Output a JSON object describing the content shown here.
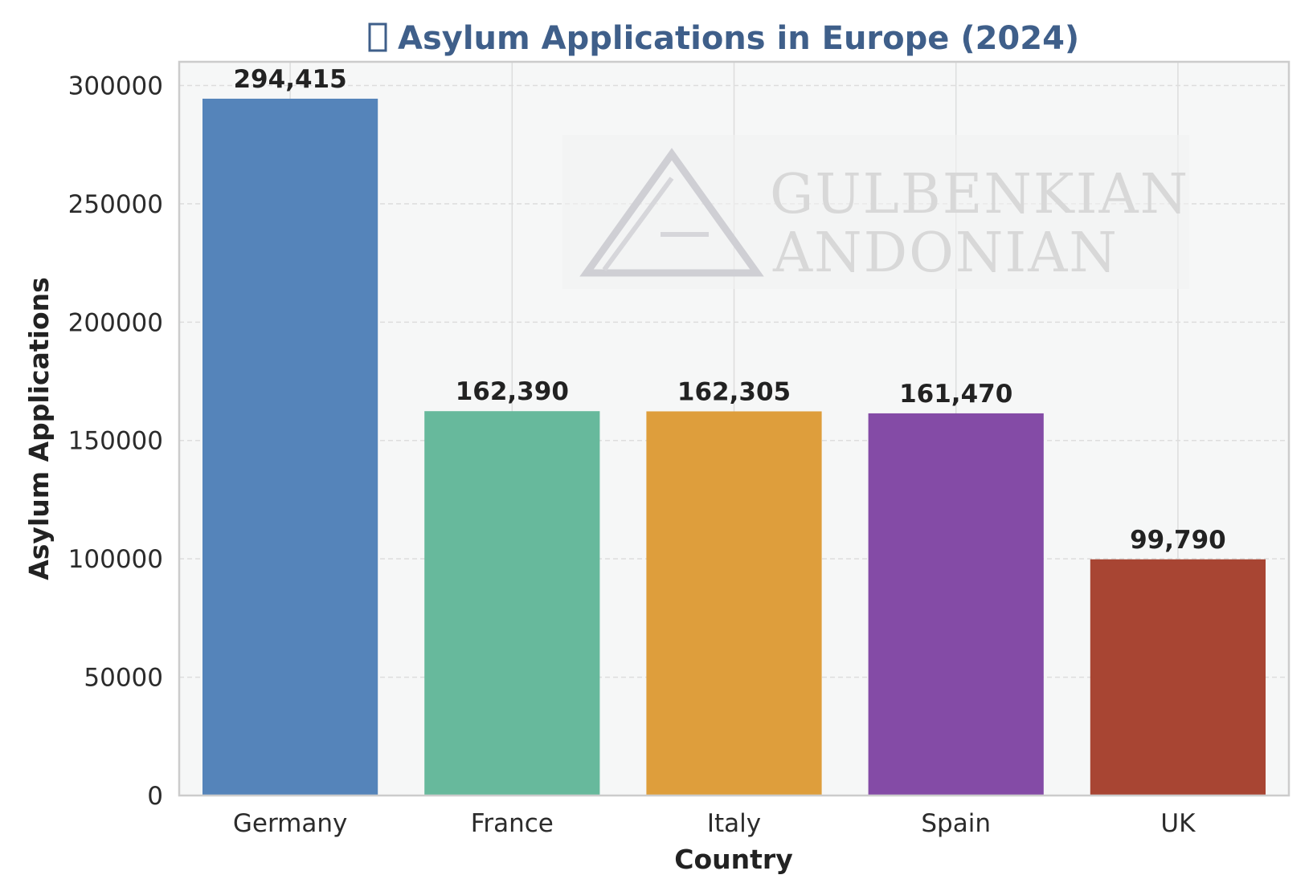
{
  "chart_data": {
    "type": "bar",
    "title": "Asylum Applications in Europe (2024)",
    "title_icon": "unknown-glyph-box",
    "xlabel": "Country",
    "ylabel": "Asylum Applications",
    "categories": [
      "Germany",
      "France",
      "Italy",
      "Spain",
      "UK"
    ],
    "values": [
      294415,
      162390,
      162305,
      161470,
      99790
    ],
    "value_labels": [
      "294,415",
      "162,390",
      "162,305",
      "161,470",
      "99,790"
    ],
    "colors": [
      "#5584ba",
      "#67b99c",
      "#de9e3c",
      "#844ba6",
      "#a84533"
    ],
    "ylim": [
      0,
      310000
    ],
    "yticks": [
      0,
      50000,
      100000,
      150000,
      200000,
      250000,
      300000
    ],
    "ytick_labels": [
      "0",
      "50000",
      "100000",
      "150000",
      "200000",
      "250000",
      "300000"
    ],
    "grid": true,
    "legend": "none"
  },
  "watermark": {
    "line1": "GULBENKIAN",
    "line2": "ANDONIAN"
  },
  "colors": {
    "title": "#3f5f8a",
    "plot_background": "#f6f7f7",
    "frame": "#cccccc",
    "grid": "#dddddd"
  }
}
